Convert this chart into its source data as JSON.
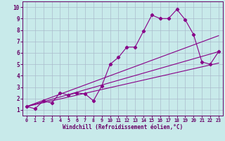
{
  "bg_color": "#c8eaea",
  "grid_color": "#aabbcc",
  "line_color": "#880088",
  "tick_color": "#660066",
  "xlabel": "Windchill (Refroidissement éolien,°C)",
  "xlim": [
    -0.5,
    23.5
  ],
  "ylim": [
    0.5,
    10.5
  ],
  "xticks": [
    0,
    1,
    2,
    3,
    4,
    5,
    6,
    7,
    8,
    9,
    10,
    11,
    12,
    13,
    14,
    15,
    16,
    17,
    18,
    19,
    20,
    21,
    22,
    23
  ],
  "yticks": [
    1,
    2,
    3,
    4,
    5,
    6,
    7,
    8,
    9,
    10
  ],
  "line1_x": [
    0,
    1,
    2,
    3,
    4,
    5,
    6,
    7,
    8,
    9,
    10,
    11,
    12,
    13,
    14,
    15,
    16,
    17,
    18,
    19,
    20,
    21,
    22,
    23
  ],
  "line1_y": [
    1.3,
    1.1,
    1.8,
    1.6,
    2.5,
    2.3,
    2.5,
    2.4,
    1.8,
    3.1,
    5.0,
    5.6,
    6.5,
    6.5,
    7.9,
    9.3,
    9.0,
    9.0,
    9.8,
    8.9,
    7.6,
    5.2,
    5.0,
    6.1
  ],
  "line2_x": [
    0,
    23
  ],
  "line2_y": [
    1.3,
    7.5
  ],
  "line3_x": [
    0,
    23
  ],
  "line3_y": [
    1.3,
    5.1
  ],
  "line4_x": [
    0,
    23
  ],
  "line4_y": [
    1.3,
    6.1
  ]
}
